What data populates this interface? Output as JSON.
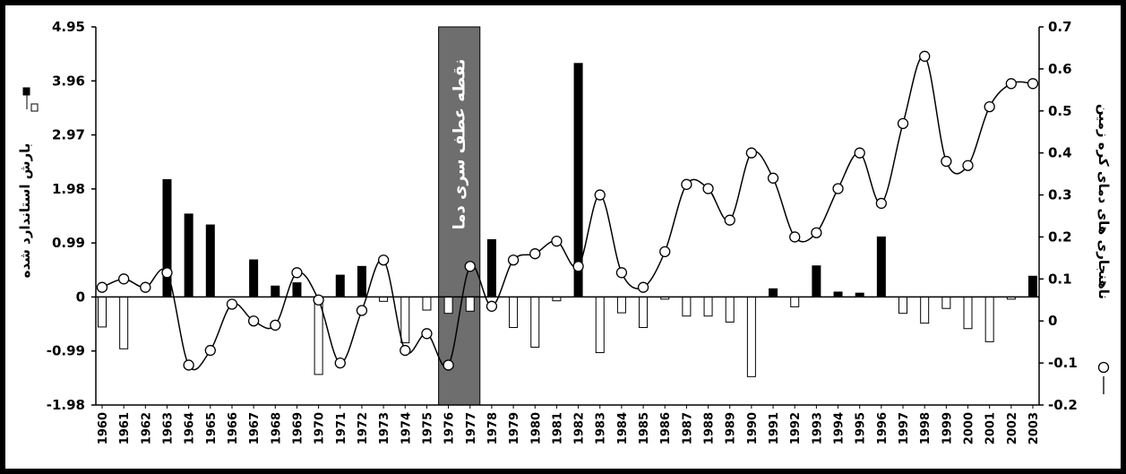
{
  "chart_data": {
    "type": "bar",
    "categories": [
      "1960",
      "1961",
      "1962",
      "1963",
      "1964",
      "1965",
      "1966",
      "1967",
      "1968",
      "1969",
      "1970",
      "1971",
      "1972",
      "1973",
      "1974",
      "1975",
      "1976",
      "1977",
      "1978",
      "1979",
      "1980",
      "1981",
      "1982",
      "1983",
      "1984",
      "1985",
      "1986",
      "1987",
      "1988",
      "1989",
      "1990",
      "1991",
      "1992",
      "1993",
      "1994",
      "1995",
      "1996",
      "1997",
      "1998",
      "1999",
      "2000",
      "2001",
      "2002",
      "2003"
    ],
    "series": [
      {
        "axis": "left",
        "kind": "bar",
        "values": [
          -0.55,
          -0.95,
          0.0,
          2.15,
          1.52,
          1.32,
          0.0,
          0.68,
          0.2,
          0.26,
          -1.42,
          0.4,
          0.56,
          -0.08,
          -0.84,
          -0.24,
          -0.3,
          -0.26,
          1.05,
          -0.56,
          -0.92,
          -0.07,
          4.28,
          -1.02,
          -0.29,
          -0.56,
          -0.04,
          -0.35,
          -0.35,
          -0.46,
          -1.46,
          0.15,
          -0.18,
          0.57,
          0.09,
          0.07,
          1.1,
          -0.3,
          -0.48,
          -0.21,
          -0.58,
          -0.82,
          -0.04,
          0.38
        ]
      },
      {
        "axis": "right",
        "kind": "line",
        "values": [
          0.08,
          0.1,
          0.08,
          0.115,
          -0.105,
          -0.07,
          0.04,
          0.0,
          -0.01,
          0.115,
          0.05,
          -0.1,
          0.025,
          0.145,
          -0.07,
          -0.03,
          -0.105,
          0.13,
          0.035,
          0.145,
          0.16,
          0.19,
          0.13,
          0.3,
          0.115,
          0.08,
          0.165,
          0.325,
          0.315,
          0.24,
          0.4,
          0.34,
          0.2,
          0.21,
          0.315,
          0.4,
          0.28,
          0.47,
          0.63,
          0.38,
          0.37,
          0.51,
          0.565,
          0.565
        ]
      }
    ],
    "y_left": {
      "label": "بارش استاندارد شده",
      "ticks": [
        "4.95",
        "3.96",
        "2.97",
        "1.98",
        "0.99",
        "0",
        "-0.99",
        "-1.98"
      ],
      "range": [
        -1.98,
        4.95
      ]
    },
    "y_right": {
      "label": "ناهنجاری های دمای کره زمین",
      "ticks": [
        "0.7",
        "0.6",
        "0.5",
        "0.4",
        "0.3",
        "0.2",
        "0.1",
        "0",
        "-0.1",
        "-0.2"
      ],
      "range": [
        -0.2,
        0.7
      ]
    },
    "annotation": {
      "text": "نقطه عطف سری دما",
      "from_category": "1976",
      "to_category": "1977"
    },
    "legend": {
      "placement": "left-and-right"
    },
    "grid": false,
    "colors": {
      "positive_bar": "#000000",
      "negative_bar": "#ffffff",
      "line": "#000000",
      "marker_fill": "#ffffff",
      "annotation_band": "#6e6e6e"
    }
  }
}
